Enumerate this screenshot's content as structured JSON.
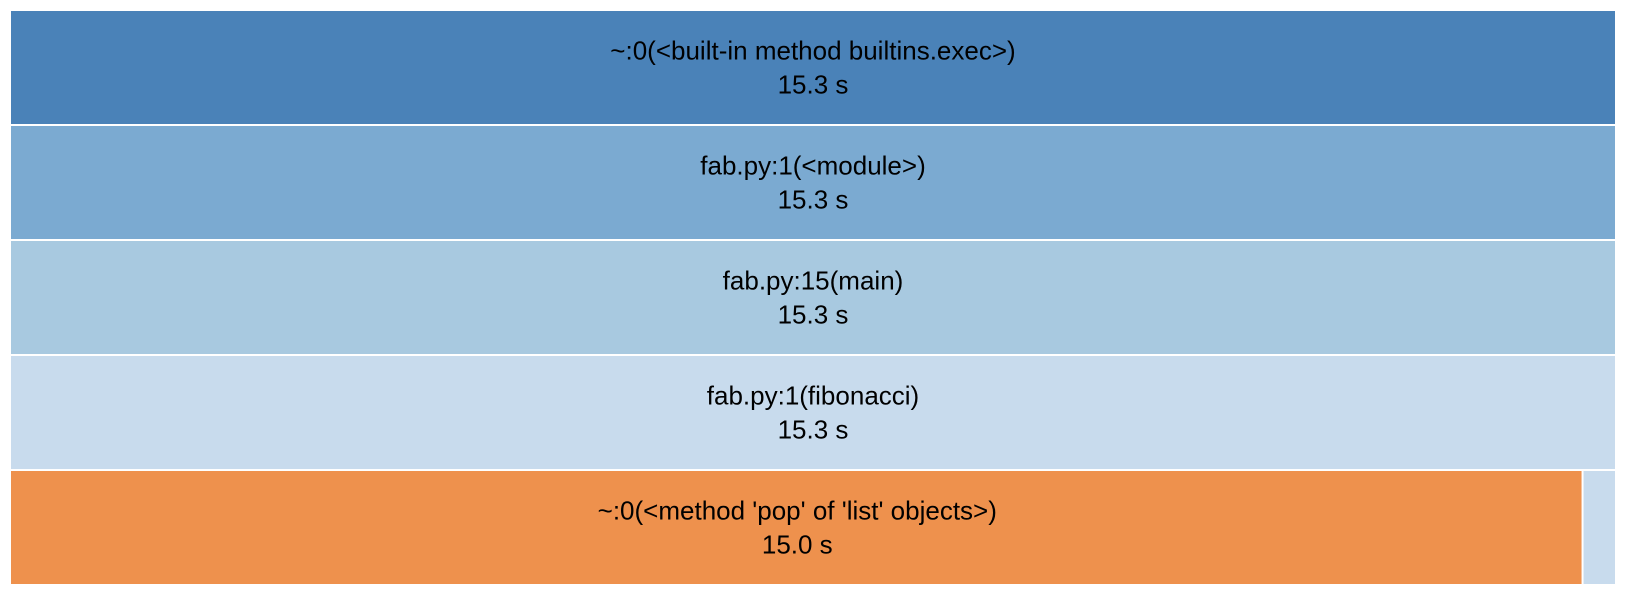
{
  "chart_data": {
    "type": "icicle",
    "unit": "s",
    "total": 15.3,
    "levels": [
      [
        {
          "label": "~:0(<built-in method builtins.exec>)",
          "value_text": "15.3 s",
          "value": 15.3,
          "color": "#4a82b8"
        }
      ],
      [
        {
          "label": "fab.py:1(<module>)",
          "value_text": "15.3 s",
          "value": 15.3,
          "color": "#7baad1"
        }
      ],
      [
        {
          "label": "fab.py:15(main)",
          "value_text": "15.3 s",
          "value": 15.3,
          "color": "#a8c9e0"
        }
      ],
      [
        {
          "label": "fab.py:1(fibonacci)",
          "value_text": "15.3 s",
          "value": 15.3,
          "color": "#c8dbed"
        }
      ],
      [
        {
          "label": "~:0(<method 'pop' of 'list' objects>)",
          "value_text": "15.0 s",
          "value": 15.0,
          "color": "#ee914d"
        },
        {
          "label": "",
          "value_text": "",
          "value": 0.3,
          "color": "#c8dbed"
        }
      ]
    ]
  }
}
